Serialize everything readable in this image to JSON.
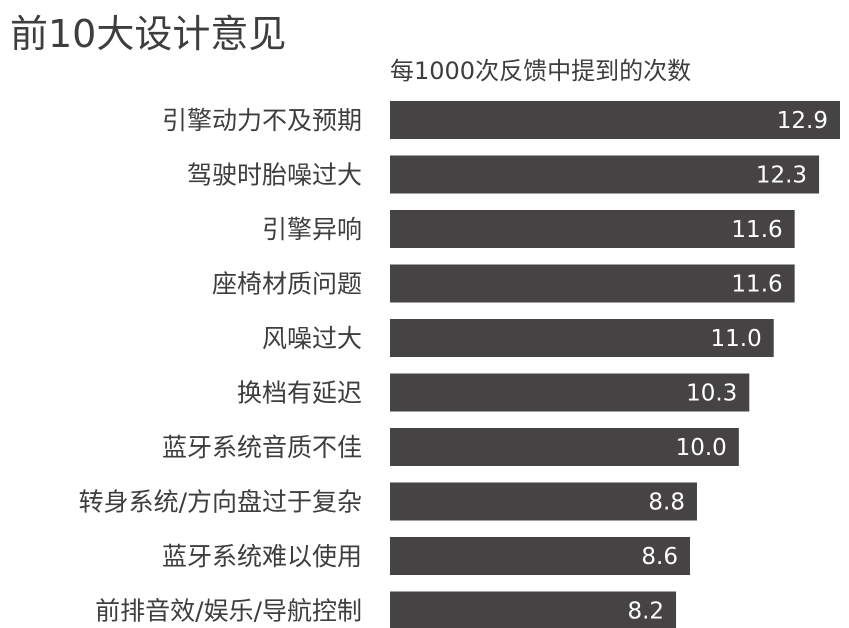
{
  "chart_data": {
    "type": "bar",
    "orientation": "horizontal",
    "title": "前10大设计意见",
    "subtitle": "每1000次反馈中提到的次数",
    "categories": [
      "引擎动力不及预期",
      "驾驶时胎噪过大",
      "引擎异响",
      "座椅材质问题",
      "风噪过大",
      "换档有延迟",
      "蓝牙系统音质不佳",
      "转身系统/方向盘过于复杂",
      "蓝牙系统难以使用",
      "前排音效/娱乐/导航控制"
    ],
    "values": [
      12.9,
      12.3,
      11.6,
      11.6,
      11.0,
      10.3,
      10.0,
      8.8,
      8.6,
      8.2
    ],
    "value_labels": [
      "12.9",
      "12.3",
      "11.6",
      "11.6",
      "11.0",
      "10.3",
      "10.0",
      "8.8",
      "8.6",
      "8.2"
    ],
    "xlim": [
      0,
      12.9
    ],
    "grid": false,
    "colors": {
      "bar": "#464344",
      "bar_label": "#ffffff",
      "text": "#3f3d3d"
    }
  }
}
